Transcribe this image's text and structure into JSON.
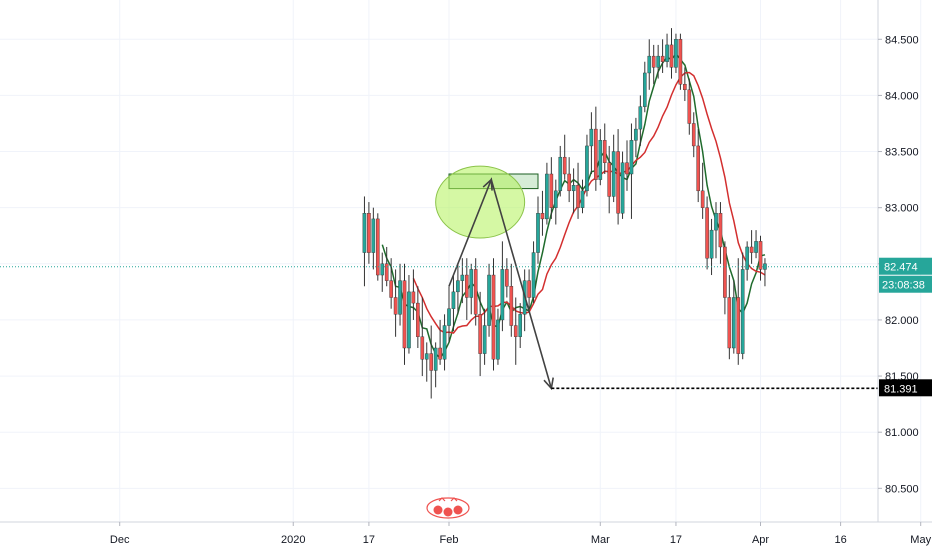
{
  "chart_data": {
    "type": "candlestick",
    "x_axis": {
      "tick_labels": [
        "Dec",
        "2020",
        "17",
        "Feb",
        "Mar",
        "17",
        "Apr",
        "16",
        "May"
      ],
      "tick_bar_index": [
        26,
        65,
        82,
        100,
        134,
        151,
        170,
        188,
        206
      ]
    },
    "y_axis": {
      "range": [
        80.2,
        84.85
      ],
      "ticks": [
        80.5,
        81.0,
        81.5,
        82.0,
        82.5,
        83.0,
        83.5,
        84.0,
        84.5
      ],
      "tick_labels": [
        "80.500",
        "81.000",
        "81.500",
        "82.000",
        "82.500",
        "83.000",
        "83.500",
        "84.000",
        "84.500"
      ]
    },
    "candles": [
      {
        "o": 82.6,
        "h": 83.1,
        "l": 82.3,
        "c": 82.95
      },
      {
        "o": 82.95,
        "h": 83.05,
        "l": 82.5,
        "c": 82.6
      },
      {
        "o": 82.6,
        "h": 83.0,
        "l": 82.45,
        "c": 82.9
      },
      {
        "o": 82.9,
        "h": 82.95,
        "l": 82.35,
        "c": 82.4
      },
      {
        "o": 82.4,
        "h": 82.6,
        "l": 82.25,
        "c": 82.5
      },
      {
        "o": 82.5,
        "h": 82.65,
        "l": 82.3,
        "c": 82.35
      },
      {
        "o": 82.35,
        "h": 82.55,
        "l": 82.1,
        "c": 82.2
      },
      {
        "o": 82.2,
        "h": 82.45,
        "l": 81.85,
        "c": 82.05
      },
      {
        "o": 82.05,
        "h": 82.5,
        "l": 81.95,
        "c": 82.35
      },
      {
        "o": 82.35,
        "h": 82.5,
        "l": 81.6,
        "c": 81.75
      },
      {
        "o": 81.75,
        "h": 82.4,
        "l": 81.7,
        "c": 82.25
      },
      {
        "o": 82.25,
        "h": 82.45,
        "l": 82.0,
        "c": 82.15
      },
      {
        "o": 82.15,
        "h": 82.3,
        "l": 81.75,
        "c": 81.85
      },
      {
        "o": 81.85,
        "h": 82.2,
        "l": 81.5,
        "c": 81.65
      },
      {
        "o": 81.65,
        "h": 81.8,
        "l": 81.45,
        "c": 81.7
      },
      {
        "o": 81.7,
        "h": 81.95,
        "l": 81.3,
        "c": 81.55
      },
      {
        "o": 81.55,
        "h": 81.8,
        "l": 81.4,
        "c": 81.75
      },
      {
        "o": 81.75,
        "h": 82.0,
        "l": 81.6,
        "c": 81.65
      },
      {
        "o": 81.65,
        "h": 82.05,
        "l": 81.55,
        "c": 81.95
      },
      {
        "o": 81.95,
        "h": 82.3,
        "l": 81.8,
        "c": 82.1
      },
      {
        "o": 82.1,
        "h": 82.4,
        "l": 81.9,
        "c": 82.25
      },
      {
        "o": 82.25,
        "h": 82.5,
        "l": 82.05,
        "c": 82.35
      },
      {
        "o": 82.35,
        "h": 82.55,
        "l": 82.15,
        "c": 82.4
      },
      {
        "o": 82.4,
        "h": 82.55,
        "l": 82.0,
        "c": 82.2
      },
      {
        "o": 82.2,
        "h": 82.5,
        "l": 82.05,
        "c": 82.45
      },
      {
        "o": 82.45,
        "h": 82.55,
        "l": 81.95,
        "c": 82.05
      },
      {
        "o": 82.05,
        "h": 82.25,
        "l": 81.5,
        "c": 81.7
      },
      {
        "o": 81.7,
        "h": 82.1,
        "l": 81.6,
        "c": 81.95
      },
      {
        "o": 81.95,
        "h": 82.5,
        "l": 81.85,
        "c": 82.4
      },
      {
        "o": 82.4,
        "h": 82.55,
        "l": 81.55,
        "c": 81.65
      },
      {
        "o": 81.65,
        "h": 82.1,
        "l": 81.6,
        "c": 82.0
      },
      {
        "o": 82.0,
        "h": 82.7,
        "l": 81.9,
        "c": 82.45
      },
      {
        "o": 82.45,
        "h": 82.55,
        "l": 82.2,
        "c": 82.3
      },
      {
        "o": 82.3,
        "h": 82.5,
        "l": 81.85,
        "c": 81.95
      },
      {
        "o": 81.95,
        "h": 82.2,
        "l": 81.6,
        "c": 81.85
      },
      {
        "o": 81.85,
        "h": 82.15,
        "l": 81.75,
        "c": 82.05
      },
      {
        "o": 82.05,
        "h": 82.45,
        "l": 81.9,
        "c": 82.35
      },
      {
        "o": 82.35,
        "h": 82.45,
        "l": 82.1,
        "c": 82.2
      },
      {
        "o": 82.2,
        "h": 82.7,
        "l": 82.15,
        "c": 82.6
      },
      {
        "o": 82.6,
        "h": 83.1,
        "l": 82.5,
        "c": 82.95
      },
      {
        "o": 82.95,
        "h": 83.15,
        "l": 82.75,
        "c": 82.9
      },
      {
        "o": 82.9,
        "h": 83.4,
        "l": 82.85,
        "c": 83.3
      },
      {
        "o": 83.3,
        "h": 83.45,
        "l": 82.9,
        "c": 83.0
      },
      {
        "o": 83.0,
        "h": 83.25,
        "l": 82.85,
        "c": 83.15
      },
      {
        "o": 83.15,
        "h": 83.55,
        "l": 83.1,
        "c": 83.45
      },
      {
        "o": 83.45,
        "h": 83.65,
        "l": 83.25,
        "c": 83.3
      },
      {
        "o": 83.3,
        "h": 83.45,
        "l": 83.05,
        "c": 83.15
      },
      {
        "o": 83.15,
        "h": 83.35,
        "l": 82.95,
        "c": 83.2
      },
      {
        "o": 83.2,
        "h": 83.4,
        "l": 82.9,
        "c": 83.0
      },
      {
        "o": 83.0,
        "h": 83.25,
        "l": 82.95,
        "c": 83.15
      },
      {
        "o": 83.15,
        "h": 83.65,
        "l": 83.1,
        "c": 83.55
      },
      {
        "o": 83.55,
        "h": 83.85,
        "l": 83.3,
        "c": 83.7
      },
      {
        "o": 83.7,
        "h": 83.9,
        "l": 83.15,
        "c": 83.25
      },
      {
        "o": 83.25,
        "h": 83.7,
        "l": 83.2,
        "c": 83.6
      },
      {
        "o": 83.6,
        "h": 83.75,
        "l": 83.3,
        "c": 83.4
      },
      {
        "o": 83.4,
        "h": 83.55,
        "l": 82.95,
        "c": 83.1
      },
      {
        "o": 83.1,
        "h": 83.65,
        "l": 83.05,
        "c": 83.5
      },
      {
        "o": 83.5,
        "h": 83.7,
        "l": 82.85,
        "c": 82.95
      },
      {
        "o": 82.95,
        "h": 83.5,
        "l": 82.9,
        "c": 83.4
      },
      {
        "o": 83.4,
        "h": 83.6,
        "l": 83.15,
        "c": 83.3
      },
      {
        "o": 83.3,
        "h": 83.75,
        "l": 82.9,
        "c": 83.6
      },
      {
        "o": 83.6,
        "h": 83.8,
        "l": 83.45,
        "c": 83.7
      },
      {
        "o": 83.7,
        "h": 84.0,
        "l": 83.55,
        "c": 83.9
      },
      {
        "o": 83.9,
        "h": 84.3,
        "l": 83.85,
        "c": 84.2
      },
      {
        "o": 84.2,
        "h": 84.5,
        "l": 84.05,
        "c": 84.35
      },
      {
        "o": 84.35,
        "h": 84.45,
        "l": 84.1,
        "c": 84.25
      },
      {
        "o": 84.25,
        "h": 84.45,
        "l": 84.15,
        "c": 84.35
      },
      {
        "o": 84.35,
        "h": 84.5,
        "l": 84.2,
        "c": 84.3
      },
      {
        "o": 84.3,
        "h": 84.55,
        "l": 84.25,
        "c": 84.45
      },
      {
        "o": 84.45,
        "h": 84.6,
        "l": 84.15,
        "c": 84.25
      },
      {
        "o": 84.25,
        "h": 84.55,
        "l": 84.2,
        "c": 84.5
      },
      {
        "o": 84.5,
        "h": 84.55,
        "l": 84.05,
        "c": 84.1
      },
      {
        "o": 84.1,
        "h": 84.25,
        "l": 83.95,
        "c": 84.05
      },
      {
        "o": 84.05,
        "h": 84.15,
        "l": 83.65,
        "c": 83.75
      },
      {
        "o": 83.75,
        "h": 83.85,
        "l": 83.45,
        "c": 83.55
      },
      {
        "o": 83.55,
        "h": 83.7,
        "l": 83.05,
        "c": 83.15
      },
      {
        "o": 83.15,
        "h": 83.4,
        "l": 82.9,
        "c": 83.0
      },
      {
        "o": 83.0,
        "h": 83.1,
        "l": 82.45,
        "c": 82.55
      },
      {
        "o": 82.55,
        "h": 82.9,
        "l": 82.4,
        "c": 82.8
      },
      {
        "o": 82.8,
        "h": 83.05,
        "l": 82.55,
        "c": 82.95
      },
      {
        "o": 82.95,
        "h": 83.05,
        "l": 82.5,
        "c": 82.65
      },
      {
        "o": 82.65,
        "h": 82.7,
        "l": 82.05,
        "c": 82.2
      },
      {
        "o": 82.2,
        "h": 82.4,
        "l": 81.65,
        "c": 81.75
      },
      {
        "o": 81.75,
        "h": 82.35,
        "l": 81.7,
        "c": 82.2
      },
      {
        "o": 82.2,
        "h": 82.55,
        "l": 81.6,
        "c": 81.7
      },
      {
        "o": 81.7,
        "h": 82.6,
        "l": 81.65,
        "c": 82.45
      },
      {
        "o": 82.45,
        "h": 82.7,
        "l": 82.35,
        "c": 82.65
      },
      {
        "o": 82.65,
        "h": 82.8,
        "l": 82.5,
        "c": 82.6
      },
      {
        "o": 82.6,
        "h": 82.8,
        "l": 82.55,
        "c": 82.7
      },
      {
        "o": 82.7,
        "h": 82.75,
        "l": 82.35,
        "c": 82.45
      },
      {
        "o": 82.45,
        "h": 82.55,
        "l": 82.3,
        "c": 82.5
      }
    ],
    "x_offset_bars": 81,
    "series": [
      {
        "type": "ma",
        "color": "#1f6b2c"
      },
      {
        "type": "ma",
        "color": "#d32f2f"
      }
    ],
    "last_price": 82.474,
    "last_price_label": "82.474",
    "countdown_label": "23:08:38",
    "target_price": 81.391,
    "target_price_label": "81.391",
    "annotations": {
      "zone": {
        "bar_start": 100,
        "bar_end": 120,
        "price_low": 83.17,
        "price_high": 83.3
      },
      "ellipse": {
        "bar_center": 107,
        "price_center": 83.05,
        "bar_radius": 10,
        "price_radius": 0.32
      },
      "arrow": {
        "points": [
          [
            100,
            82.3
          ],
          [
            109.5,
            83.25
          ],
          [
            123,
            81.39
          ]
        ]
      },
      "target_line_start_bar": 123
    },
    "grid": true,
    "legend": "none",
    "colors": {
      "up": "#26a69a",
      "down": "#ef5350",
      "last_price_line": "#26a69a",
      "zone_fill": "#c8e6c9",
      "zone_stroke": "#1b5e20",
      "ellipse_fill": "#b2f25a",
      "arrow": "#424242",
      "target_badge": "#000000"
    }
  }
}
